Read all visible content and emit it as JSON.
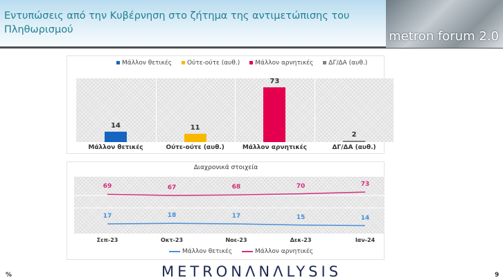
{
  "header": {
    "title": "Εντυπώσεις από την Κυβέρνηση στο ζήτημα της αντιμετώπισης του Πληθωρισμού",
    "logo_text": "metron forum 2.0"
  },
  "chart_data": [
    {
      "type": "bar",
      "title": "",
      "categories": [
        "Μάλλον θετικές",
        "Ούτε-ούτε (αυθ.)",
        "Μάλλον αρνητικές",
        "ΔΓ/ΔΑ (αυθ.)"
      ],
      "values": [
        14,
        11,
        73,
        2
      ],
      "colors": [
        "#1565c0",
        "#f9b800",
        "#e5004f",
        "#808080"
      ],
      "legend": [
        "Μάλλον θετικές",
        "Ούτε-ούτε (αυθ.)",
        "Μάλλον αρνητικές",
        "ΔΓ/ΔΑ (αυθ.)"
      ],
      "legend_position": "top",
      "ylim": [
        0,
        85
      ],
      "grid": true
    },
    {
      "type": "line",
      "title": "Διαχρονικά στοιχεία",
      "x": [
        "Σεπ-23",
        "Οκτ-23",
        "Νοε-23",
        "Δεκ-23",
        "Ιαν-24"
      ],
      "series": [
        {
          "name": "Μάλλον θετικές",
          "values": [
            17,
            18,
            17,
            15,
            14
          ],
          "color": "#4a90d9"
        },
        {
          "name": "Μάλλον αρνητικές",
          "values": [
            69,
            67,
            68,
            70,
            73
          ],
          "color": "#d0307a"
        }
      ],
      "legend_position": "bottom",
      "ylim": [
        0,
        100
      ],
      "grid": true
    }
  ],
  "footer": {
    "brand": "METRONΛNΛLYSIS",
    "left_mark": "%",
    "page": "9"
  }
}
